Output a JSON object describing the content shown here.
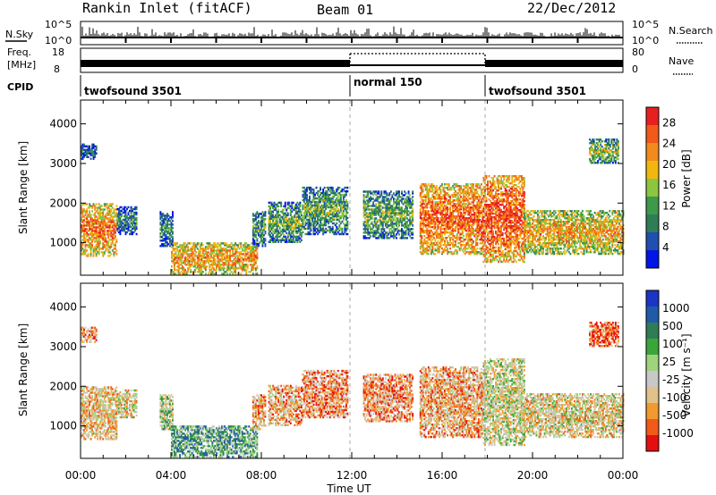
{
  "header": {
    "title": "Rankin Inlet (fitACF)",
    "beam": "Beam 01",
    "date": "22/Dec/2012"
  },
  "strip_nsky": {
    "label": "N.Sky",
    "right_label": "N.Search",
    "ticks_left": [
      "10^5",
      "10^0"
    ],
    "ticks_right": [
      "10^5",
      "10^0"
    ]
  },
  "strip_freq": {
    "label_line1": "Freq.",
    "label_line2": "[MHz]",
    "right_label": "Nave",
    "ticks_left": [
      "18",
      "8"
    ],
    "ticks_right": [
      "80",
      "0"
    ]
  },
  "strip_cpid": {
    "label": "CPID",
    "segments": [
      {
        "name": "twofsound 3501",
        "start": 0,
        "end": 12
      },
      {
        "name": "normal 150",
        "start": 12,
        "end": 18
      },
      {
        "name": "twofsound 3501",
        "start": 18,
        "end": 24
      }
    ]
  },
  "colors": {
    "power": [
      "#0015e6",
      "#1f4fb0",
      "#2f7d57",
      "#3c9a4a",
      "#8cc63f",
      "#f2b70f",
      "#f28a1d",
      "#f25a1a",
      "#e81f1f"
    ],
    "velocity": [
      "#e60f0f",
      "#f25a1a",
      "#f29a2e",
      "#e0c28a",
      "#c8c8c8",
      "#9ed47c",
      "#3aa63a",
      "#2f7d57",
      "#205aa8",
      "#1a35c6"
    ]
  },
  "chart_data": [
    {
      "type": "heatmap",
      "title": "Power",
      "xlabel": "Time UT",
      "ylabel": "Slant Range [km]",
      "x_ticks": [
        "00:00",
        "04:00",
        "08:00",
        "12:00",
        "16:00",
        "20:00",
        "00:00"
      ],
      "x_range_hours": [
        0,
        24
      ],
      "y_ticks": [
        1000,
        2000,
        3000,
        4000
      ],
      "y_range_km": [
        180,
        4600
      ],
      "colorbar": {
        "label": "Power [dB]",
        "ticks": [
          4,
          8,
          12,
          16,
          20,
          24,
          28
        ],
        "range": [
          0,
          31
        ]
      },
      "echo_regions": [
        {
          "t0": 0.0,
          "t1": 1.6,
          "r0": 650,
          "r1": 2000,
          "level": 0.8
        },
        {
          "t0": 1.6,
          "t1": 2.5,
          "r0": 1200,
          "r1": 1900,
          "level": 0.35
        },
        {
          "t0": 3.5,
          "t1": 4.1,
          "r0": 900,
          "r1": 1800,
          "level": 0.35
        },
        {
          "t0": 4.0,
          "t1": 7.8,
          "r0": 200,
          "r1": 1000,
          "level": 0.75
        },
        {
          "t0": 7.6,
          "t1": 8.2,
          "r0": 900,
          "r1": 1800,
          "level": 0.4
        },
        {
          "t0": 8.3,
          "t1": 9.8,
          "r0": 1000,
          "r1": 2000,
          "level": 0.45
        },
        {
          "t0": 9.8,
          "t1": 11.8,
          "r0": 1200,
          "r1": 2400,
          "level": 0.45
        },
        {
          "t0": 12.5,
          "t1": 14.7,
          "r0": 1100,
          "r1": 2300,
          "level": 0.45
        },
        {
          "t0": 15.0,
          "t1": 17.8,
          "r0": 700,
          "r1": 2500,
          "level": 0.85
        },
        {
          "t0": 17.8,
          "t1": 19.6,
          "r0": 500,
          "r1": 2700,
          "level": 0.9
        },
        {
          "t0": 19.6,
          "t1": 24.0,
          "r0": 700,
          "r1": 1800,
          "level": 0.7
        },
        {
          "t0": 0.0,
          "t1": 0.7,
          "r0": 3100,
          "r1": 3500,
          "level": 0.3
        },
        {
          "t0": 22.5,
          "t1": 23.8,
          "r0": 3000,
          "r1": 3600,
          "level": 0.5
        }
      ]
    },
    {
      "type": "heatmap",
      "title": "Velocity",
      "xlabel": "Time UT",
      "ylabel": "Slant Range [km]",
      "x_ticks": [
        "00:00",
        "04:00",
        "08:00",
        "12:00",
        "16:00",
        "20:00",
        "00:00"
      ],
      "x_range_hours": [
        0,
        24
      ],
      "y_ticks": [
        1000,
        2000,
        3000,
        4000
      ],
      "y_range_km": [
        180,
        4600
      ],
      "colorbar": {
        "label": "Velocity [m s⁻¹]",
        "ticks": [
          1000,
          500,
          100,
          25,
          -25,
          -100,
          -500,
          -1000
        ]
      },
      "echo_regions": [
        {
          "t0": 0.0,
          "t1": 1.6,
          "r0": 650,
          "r1": 2000,
          "level": 0.35
        },
        {
          "t0": 1.6,
          "t1": 2.5,
          "r0": 1200,
          "r1": 1900,
          "level": 0.4
        },
        {
          "t0": 3.5,
          "t1": 4.1,
          "r0": 900,
          "r1": 1800,
          "level": 0.5
        },
        {
          "t0": 4.0,
          "t1": 7.8,
          "r0": 200,
          "r1": 1000,
          "level": 0.65
        },
        {
          "t0": 7.6,
          "t1": 8.2,
          "r0": 900,
          "r1": 1800,
          "level": 0.3
        },
        {
          "t0": 8.3,
          "t1": 9.8,
          "r0": 1000,
          "r1": 2000,
          "level": 0.3
        },
        {
          "t0": 9.8,
          "t1": 11.8,
          "r0": 1200,
          "r1": 2400,
          "level": 0.25
        },
        {
          "t0": 12.5,
          "t1": 14.7,
          "r0": 1100,
          "r1": 2300,
          "level": 0.25
        },
        {
          "t0": 15.0,
          "t1": 17.8,
          "r0": 700,
          "r1": 2500,
          "level": 0.3
        },
        {
          "t0": 17.8,
          "t1": 19.6,
          "r0": 500,
          "r1": 2700,
          "level": 0.45
        },
        {
          "t0": 19.6,
          "t1": 24.0,
          "r0": 700,
          "r1": 1800,
          "level": 0.4
        },
        {
          "t0": 0.0,
          "t1": 0.7,
          "r0": 3100,
          "r1": 3500,
          "level": 0.25
        },
        {
          "t0": 22.5,
          "t1": 23.8,
          "r0": 3000,
          "r1": 3600,
          "level": 0.15
        }
      ]
    }
  ]
}
